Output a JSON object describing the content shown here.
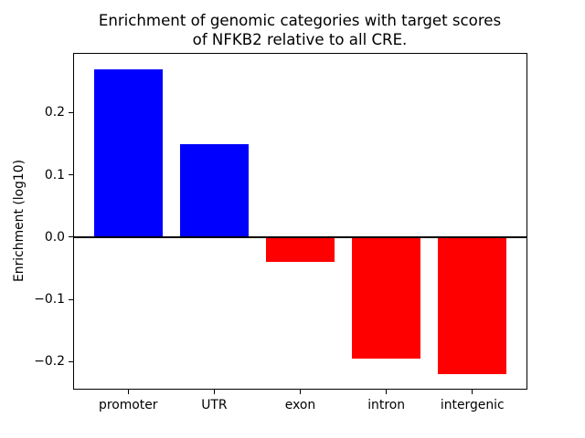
{
  "figure": {
    "title_lines": [
      "Enrichment of genomic categories with target scores",
      "of NFKB2 relative to all CRE."
    ],
    "ylabel": "Enrichment (log10)"
  },
  "chart_data": {
    "type": "bar",
    "title": "Enrichment of genomic categories with target scores of NFKB2 relative to all CRE.",
    "xlabel": "",
    "ylabel": "Enrichment (log10)",
    "categories": [
      "promoter",
      "UTR",
      "exon",
      "intron",
      "intergenic"
    ],
    "values": [
      0.27,
      0.15,
      -0.04,
      -0.195,
      -0.22
    ],
    "bar_colors": [
      "#0000ff",
      "#0000ff",
      "#ff0000",
      "#ff0000",
      "#ff0000"
    ],
    "positive_color": "#0000ff",
    "negative_color": "#ff0000",
    "bar_width": 0.8,
    "xlim": [
      -0.64,
      4.64
    ],
    "ylim": [
      -0.245,
      0.296
    ],
    "yticks": [
      0.2,
      0.1,
      0.0,
      -0.1,
      -0.2
    ],
    "ytick_labels": [
      "0.2",
      "0.1",
      "0.0",
      "−0.1",
      "−0.2"
    ],
    "grid": false,
    "legend": false,
    "zero_line": {
      "show": true,
      "color": "#000000"
    }
  }
}
